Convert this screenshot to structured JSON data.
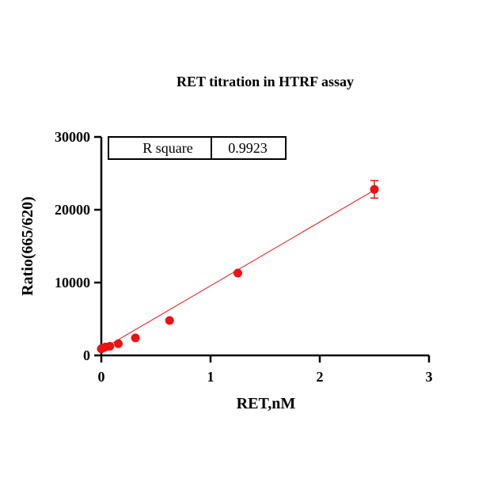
{
  "chart_data": {
    "type": "scatter",
    "title": "RET titration in HTRF assay",
    "xlabel": "RET,nM",
    "ylabel": "Ratio(665/620)",
    "xlim": [
      0,
      3
    ],
    "ylim": [
      0,
      30000
    ],
    "x_ticks": [
      "0",
      "1",
      "2",
      "3"
    ],
    "y_ticks": [
      "0",
      "10000",
      "20000",
      "30000"
    ],
    "x_tick_values": [
      0,
      1,
      2,
      3
    ],
    "y_tick_values": [
      0,
      10000,
      20000,
      30000
    ],
    "series": [
      {
        "x": [
          0,
          0.0098,
          0.0195,
          0.039,
          0.078,
          0.156,
          0.3125,
          0.625,
          1.25,
          2.5
        ],
        "y": [
          900,
          1000,
          1050,
          1150,
          1250,
          1600,
          2400,
          4800,
          11300,
          22800
        ],
        "error": [
          0,
          0,
          0,
          0,
          0,
          0,
          0,
          0,
          0,
          1200
        ],
        "color": "#ee1111"
      }
    ],
    "fit_line": {
      "x": [
        0,
        2.5
      ],
      "y": [
        800,
        22700
      ],
      "color": "#ee1111"
    },
    "stats_table": {
      "label": "R square",
      "value": "0.9923"
    },
    "grid": false
  }
}
